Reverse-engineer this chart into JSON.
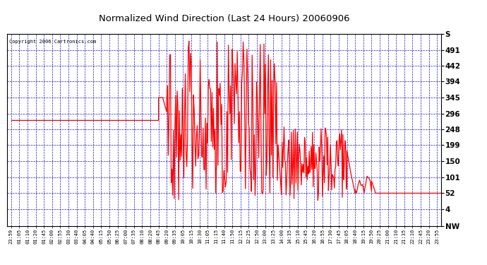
{
  "title": "Normalized Wind Direction (Last 24 Hours) 20060906",
  "copyright": "Copyright 2006 Cartronics.com",
  "ytick_labels": [
    "NW",
    "4",
    "52",
    "101",
    "150",
    "199",
    "248",
    "296",
    "345",
    "394",
    "442",
    "491",
    "S"
  ],
  "ytick_values": [
    -49,
    4,
    52,
    101,
    150,
    199,
    248,
    296,
    345,
    394,
    442,
    491,
    540
  ],
  "ymin": -49,
  "ymax": 540,
  "background_color": "#ffffff",
  "plot_bg_color": "#ffffff",
  "grid_color": "#0000cc",
  "line_color": "#ff0000",
  "border_color": "#000000",
  "xtick_labels": [
    "23:59",
    "01:05",
    "01:10",
    "01:20",
    "01:45",
    "02:00",
    "02:55",
    "03:30",
    "03:40",
    "04:05",
    "04:40",
    "05:15",
    "05:50",
    "06:25",
    "07:00",
    "07:35",
    "08:10",
    "08:20",
    "08:45",
    "09:20",
    "09:35",
    "10:05",
    "10:15",
    "10:30",
    "11:05",
    "11:15",
    "11:40",
    "11:50",
    "12:15",
    "12:25",
    "12:50",
    "13:00",
    "13:25",
    "14:00",
    "14:35",
    "15:10",
    "15:45",
    "16:20",
    "16:55",
    "17:30",
    "17:45",
    "18:05",
    "18:40",
    "19:15",
    "19:50",
    "20:25",
    "21:00",
    "21:10",
    "21:35",
    "22:10",
    "22:45",
    "23:20",
    "23:55"
  ],
  "n_ticks": 53
}
